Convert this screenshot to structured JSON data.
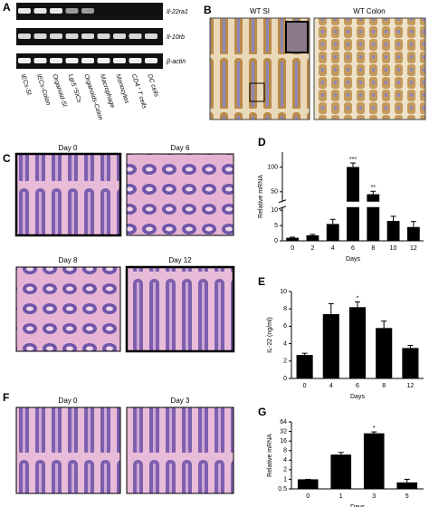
{
  "figure": {
    "panel_labels": [
      "A",
      "B",
      "C",
      "D",
      "E",
      "F",
      "G"
    ],
    "gel": {
      "gene_labels": [
        "Il-22ra1",
        "Il-10rb",
        "β-actin"
      ],
      "lane_labels": [
        "IECs-SI",
        "IECs-Colon",
        "Organoid-SI",
        "Lgr5⁺SICs",
        "Organoids-Colon",
        "Macrophage",
        "Monocytes",
        "CD4⁺ T cells",
        "DC cells"
      ]
    },
    "panel_b": {
      "labels": [
        "WT SI",
        "WT Colon"
      ]
    },
    "panel_c": {
      "labels": [
        "Day 0",
        "Day 6",
        "Day 8",
        "Day 12"
      ]
    },
    "panel_f": {
      "labels": [
        "Day 0",
        "Day 3"
      ]
    }
  },
  "chart_data": [
    {
      "type": "bar",
      "ylabel": "Relative mRNA",
      "xlabel": "Days",
      "color": "#000000",
      "categories": [
        "0",
        "2",
        "4",
        "6",
        "8",
        "10",
        "12"
      ],
      "values": [
        1,
        1.8,
        5.5,
        100,
        45,
        6.5,
        4.5
      ],
      "errors": [
        0.2,
        0.3,
        1.5,
        8,
        6,
        1.5,
        1.8
      ],
      "significance": [
        null,
        null,
        null,
        "***",
        "**",
        null,
        null
      ],
      "ylim": [
        0,
        130
      ],
      "y_break": [
        11,
        30
      ],
      "yticks": [
        0,
        5,
        10,
        50,
        100
      ]
    },
    {
      "type": "bar",
      "ylabel": "IL-22 (ng/ml)",
      "xlabel": "Days",
      "color": "#000000",
      "categories": [
        "0",
        "4",
        "6",
        "8",
        "12"
      ],
      "values": [
        2.7,
        7.4,
        8.2,
        5.8,
        3.5
      ],
      "errors": [
        0.2,
        1.2,
        0.6,
        0.8,
        0.3
      ],
      "significance": [
        null,
        null,
        "*",
        null,
        null
      ],
      "ylim": [
        0,
        10
      ],
      "yticks": [
        0,
        2,
        4,
        6,
        8,
        10
      ]
    },
    {
      "type": "bar",
      "ylabel": "Relative mRNA",
      "xlabel": "Days",
      "color": "#000000",
      "categories": [
        "0",
        "1",
        "3",
        "5"
      ],
      "values": [
        1,
        6,
        28,
        0.8
      ],
      "errors": [
        0,
        1,
        3,
        0.2
      ],
      "significance": [
        null,
        null,
        "*",
        null
      ],
      "yscale": "log",
      "ylim": [
        0.5,
        64
      ],
      "yticks": [
        0.5,
        1,
        2,
        4,
        8,
        16,
        32,
        64
      ]
    }
  ]
}
